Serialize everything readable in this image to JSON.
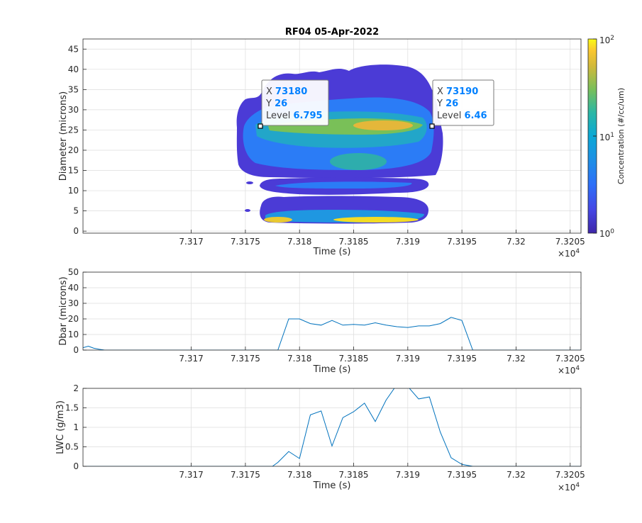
{
  "colors": {
    "line": "#0072BD",
    "datatip_value": "#0080FF",
    "grid": "#dcdcdc",
    "axis": "#262626"
  },
  "chart_data": [
    {
      "type": "contour",
      "title": "RF04 05-Apr-2022",
      "xlabel": "Time (s)",
      "ylabel": "Diameter (microns)",
      "xlim": [
        73160,
        73206
      ],
      "ylim": [
        -0.5,
        47.5
      ],
      "xticks": [
        "7.317",
        "7.3175",
        "7.318",
        "7.3185",
        "7.319",
        "7.3195",
        "7.32",
        "7.3205"
      ],
      "xtick_values": [
        73170,
        73175,
        73180,
        73185,
        73190,
        73195,
        73200,
        73205
      ],
      "x_exponent": "×10",
      "x_exponent_power": "4",
      "yticks": [
        "0",
        "5",
        "10",
        "15",
        "20",
        "25",
        "30",
        "35",
        "40",
        "45"
      ],
      "ytick_values": [
        0,
        5,
        10,
        15,
        20,
        25,
        30,
        35,
        40,
        45
      ],
      "grid": true,
      "colorbar": {
        "label": "Concentration (#/cc/um)",
        "scale": "log",
        "range": [
          1,
          100
        ],
        "base": "10",
        "tick_exponents": [
          "2",
          "1",
          "0"
        ]
      },
      "datatips": [
        {
          "x_label": "X",
          "x": "73180",
          "y_label": "Y",
          "y": "26",
          "level_label": "Level",
          "level": "6.795"
        },
        {
          "x_label": "X",
          "x": "73190",
          "y_label": "Y",
          "y": "26",
          "level_label": "Level",
          "level": "6.46"
        }
      ]
    },
    {
      "type": "line",
      "xlabel": "Time (s)",
      "ylabel": "Dbar (microns)",
      "xlim": [
        73160,
        73206
      ],
      "ylim": [
        0,
        50
      ],
      "xticks": [
        "7.317",
        "7.3175",
        "7.318",
        "7.3185",
        "7.319",
        "7.3195",
        "7.32",
        "7.3205"
      ],
      "xtick_values": [
        73170,
        73175,
        73180,
        73185,
        73190,
        73195,
        73200,
        73205
      ],
      "x_exponent": "×10",
      "x_exponent_power": "4",
      "yticks": [
        "0",
        "10",
        "20",
        "30",
        "40",
        "50"
      ],
      "ytick_values": [
        0,
        10,
        20,
        30,
        40,
        50
      ],
      "grid": true,
      "x": [
        73160,
        73160.5,
        73161,
        73161.5,
        73162,
        73178,
        73179,
        73180,
        73181,
        73182,
        73183,
        73184,
        73185,
        73186,
        73187,
        73188,
        73189,
        73190,
        73191,
        73192,
        73193,
        73194,
        73195,
        73196,
        73197,
        73206
      ],
      "y": [
        1.5,
        2.5,
        1.2,
        0.5,
        0,
        0,
        20,
        20,
        17,
        16,
        19,
        16,
        16.5,
        16,
        17.5,
        16,
        15,
        14.5,
        15.5,
        15.5,
        17,
        21,
        19,
        0,
        0,
        0
      ]
    },
    {
      "type": "line",
      "xlabel": "Time (s)",
      "ylabel": "LWC (g/m3)",
      "xlim": [
        73160,
        73206
      ],
      "ylim": [
        0,
        2
      ],
      "xticks": [
        "7.317",
        "7.3175",
        "7.318",
        "7.3185",
        "7.319",
        "7.3195",
        "7.32",
        "7.3205"
      ],
      "xtick_values": [
        73170,
        73175,
        73180,
        73185,
        73190,
        73195,
        73200,
        73205
      ],
      "x_exponent": "×10",
      "x_exponent_power": "4",
      "yticks": [
        "0",
        "0.5",
        "1",
        "1.5",
        "2"
      ],
      "ytick_values": [
        0,
        0.5,
        1,
        1.5,
        2
      ],
      "grid": true,
      "x": [
        73160,
        73177.5,
        73178,
        73179,
        73180,
        73181,
        73182,
        73183,
        73184,
        73185,
        73186,
        73187,
        73188,
        73189,
        73190,
        73191,
        73192,
        73193,
        73194,
        73195,
        73196,
        73206
      ],
      "y": [
        0,
        0,
        0.1,
        0.38,
        0.2,
        1.32,
        1.42,
        0.52,
        1.25,
        1.4,
        1.62,
        1.15,
        1.7,
        2.1,
        2.05,
        1.73,
        1.78,
        0.88,
        0.22,
        0.05,
        0,
        0
      ]
    }
  ]
}
